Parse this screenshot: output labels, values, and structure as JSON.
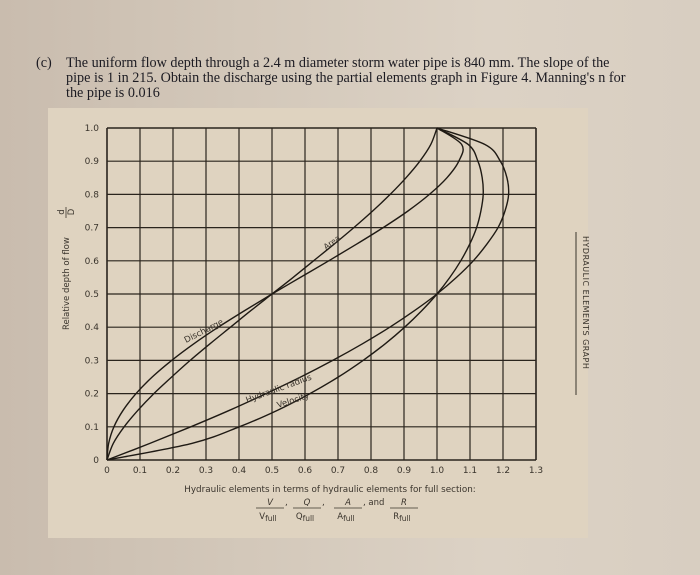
{
  "question": {
    "label": "(c)",
    "lines": [
      "The uniform flow depth through a 2.4 m diameter storm water pipe is 840 mm. The slope of the",
      "pipe is 1 in 215. Obtain the discharge using the partial elements graph in Figure 4. Manning's n for",
      "the pipe is 0.016"
    ]
  },
  "chart_data": {
    "type": "line",
    "title": "HYDRAULIC ELEMENTS GRAPH",
    "xlabel": "Hydraulic elements in terms of hydraulic elements for full section:",
    "xlabel_fractions": [
      {
        "num": "V",
        "den": "V_full"
      },
      {
        "num": "Q",
        "den": "Q_full"
      },
      {
        "num": "A",
        "den": "A_full"
      },
      {
        "num": "R",
        "den": "R_full"
      }
    ],
    "xlabel_fraction_separators": [
      ",",
      ",",
      ", and"
    ],
    "ylabel": "Relative depth of flow d/D",
    "x_ticks": [
      "0",
      "0.1",
      "0.2",
      "0.3",
      "0.4",
      "0.5",
      "0.6",
      "0.7",
      "0.8",
      "0.9",
      "1.0",
      "1.1",
      "1.2",
      "1.3"
    ],
    "y_ticks": [
      "0",
      "0.1",
      "0.2",
      "0.3",
      "0.4",
      "0.5",
      "0.6",
      "0.7",
      "0.8",
      "0.9",
      "1.0"
    ],
    "xlim": [
      0,
      1.3
    ],
    "ylim": [
      0,
      1.0
    ],
    "grid": true,
    "legend": "inline labels on curves",
    "y": [
      0,
      0.05,
      0.1,
      0.15,
      0.2,
      0.25,
      0.3,
      0.35,
      0.4,
      0.45,
      0.5,
      0.55,
      0.6,
      0.65,
      0.7,
      0.75,
      0.8,
      0.85,
      0.9,
      0.95,
      1.0
    ],
    "series": [
      {
        "name": "Area",
        "label": "Area",
        "x": [
          0,
          0.019,
          0.052,
          0.094,
          0.142,
          0.196,
          0.252,
          0.312,
          0.374,
          0.436,
          0.5,
          0.564,
          0.626,
          0.688,
          0.748,
          0.805,
          0.858,
          0.906,
          0.948,
          0.981,
          1.0
        ]
      },
      {
        "name": "Discharge",
        "label": "Discharge",
        "x": [
          0,
          0.005,
          0.021,
          0.049,
          0.088,
          0.137,
          0.196,
          0.263,
          0.337,
          0.417,
          0.5,
          0.586,
          0.672,
          0.756,
          0.837,
          0.912,
          0.977,
          1.03,
          1.066,
          1.075,
          1.0
        ]
      },
      {
        "name": "Hydraulic radius",
        "label": "Hydraulic radius",
        "x": [
          0,
          0.13,
          0.254,
          0.372,
          0.482,
          0.587,
          0.684,
          0.774,
          0.857,
          0.932,
          1.0,
          1.059,
          1.11,
          1.151,
          1.185,
          1.206,
          1.217,
          1.212,
          1.192,
          1.146,
          1.0
        ]
      },
      {
        "name": "Velocity",
        "label": "Velocity",
        "x": [
          0,
          0.257,
          0.401,
          0.517,
          0.615,
          0.701,
          0.776,
          0.843,
          0.902,
          0.954,
          1.0,
          1.039,
          1.072,
          1.099,
          1.12,
          1.133,
          1.14,
          1.137,
          1.124,
          1.095,
          1.0
        ]
      }
    ]
  },
  "chart": {
    "side_title": "HYDRAULIC ELEMENTS GRAPH",
    "axis_y_label_prefix": "Relative depth of flow",
    "axis_y_frac_num": "d",
    "axis_y_frac_den": "D"
  }
}
